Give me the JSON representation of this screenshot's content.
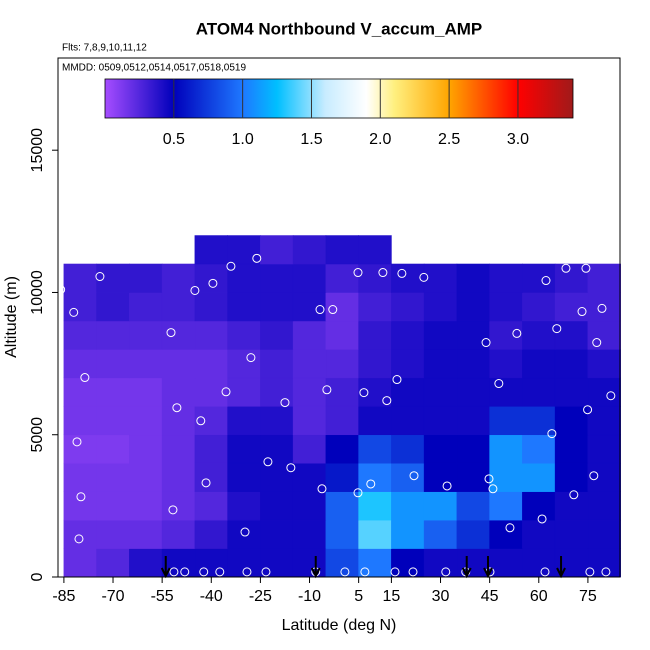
{
  "chart_data": {
    "type": "heatmap",
    "title": "ATOM4 Northbound V_accum_AMP",
    "subtitle": "Flts: 7,8,9,10,11,12",
    "annotation": "MMDD: 0509,0512,0514,0517,0518,0519",
    "x_label": "Latitude (deg N)",
    "y_label": "Altitude (m)",
    "xlim": [
      -86.8,
      84.8
    ],
    "ylim": [
      0,
      18240
    ],
    "xticks": [
      -85,
      -70,
      -55,
      -40,
      -25,
      -10,
      5,
      15,
      30,
      45,
      60,
      75
    ],
    "yticks": [
      0,
      5000,
      10000,
      15000
    ],
    "x_edges": [
      -85,
      -75,
      -65,
      -55,
      -45,
      -35,
      -25,
      -15,
      -5,
      5,
      15,
      25,
      35,
      45,
      55,
      65,
      75,
      85
    ],
    "y_edges": [
      0,
      1000,
      2000,
      3000,
      4000,
      5000,
      6000,
      7000,
      8000,
      9000,
      10000,
      11000,
      12000
    ],
    "z": [
      [
        0.2,
        0.25,
        0.4,
        0.45,
        0.45,
        0.45,
        0.45,
        0.45,
        0.8,
        1.0,
        0.5,
        0.45,
        0.45,
        0.45,
        0.45,
        0.45,
        0.45
      ],
      [
        0.2,
        0.2,
        0.2,
        0.25,
        0.35,
        0.45,
        0.45,
        0.45,
        0.9,
        1.4,
        1.1,
        0.9,
        0.7,
        0.5,
        0.45,
        0.45,
        0.45
      ],
      [
        0.15,
        0.15,
        0.15,
        0.2,
        0.25,
        0.4,
        0.45,
        0.45,
        0.9,
        1.3,
        1.1,
        1.1,
        0.8,
        1.0,
        0.5,
        0.45,
        0.45
      ],
      [
        0.15,
        0.15,
        0.15,
        0.2,
        0.3,
        0.45,
        0.45,
        0.45,
        0.6,
        1.0,
        0.9,
        0.5,
        0.5,
        1.1,
        1.1,
        0.5,
        0.45
      ],
      [
        0.12,
        0.12,
        0.15,
        0.2,
        0.3,
        0.45,
        0.45,
        0.3,
        0.5,
        0.8,
        0.7,
        0.5,
        0.5,
        1.1,
        1.0,
        0.5,
        0.45
      ],
      [
        0.15,
        0.15,
        0.15,
        0.2,
        0.25,
        0.4,
        0.4,
        0.25,
        0.3,
        0.45,
        0.45,
        0.45,
        0.45,
        0.7,
        0.7,
        0.5,
        0.45
      ],
      [
        0.15,
        0.15,
        0.15,
        0.2,
        0.2,
        0.25,
        0.3,
        0.25,
        0.3,
        0.4,
        0.45,
        0.45,
        0.45,
        0.45,
        0.45,
        0.45,
        0.45
      ],
      [
        0.2,
        0.2,
        0.2,
        0.2,
        0.2,
        0.25,
        0.3,
        0.25,
        0.25,
        0.35,
        0.4,
        0.45,
        0.45,
        0.4,
        0.45,
        0.45,
        0.4
      ],
      [
        0.25,
        0.25,
        0.25,
        0.25,
        0.25,
        0.3,
        0.35,
        0.25,
        0.2,
        0.35,
        0.4,
        0.45,
        0.45,
        0.35,
        0.4,
        0.4,
        0.3
      ],
      [
        0.3,
        0.35,
        0.3,
        0.3,
        0.35,
        0.4,
        0.4,
        0.4,
        0.2,
        0.3,
        0.35,
        0.4,
        0.45,
        0.4,
        0.35,
        0.3,
        0.3
      ],
      [
        0.3,
        0.35,
        0.35,
        0.3,
        0.35,
        0.4,
        0.4,
        0.4,
        0.3,
        0.35,
        0.4,
        0.4,
        0.45,
        0.4,
        0.4,
        0.35,
        0.3
      ],
      [
        null,
        null,
        null,
        null,
        0.4,
        0.4,
        0.3,
        0.35,
        0.4,
        0.4,
        null,
        null,
        null,
        null,
        null,
        null,
        null
      ]
    ],
    "colorbar": {
      "lim": [
        0,
        3.4
      ],
      "ticks": [
        0.5,
        {
          "value": 1,
          "label": "1.0"
        },
        1.5,
        {
          "value": 2,
          "label": "2.0"
        },
        2.5,
        {
          "value": 3,
          "label": "3.0"
        }
      ],
      "colormap": [
        {
          "value": 0,
          "color": "#a64dff"
        },
        {
          "value": 0.5,
          "color": "#0000bb"
        },
        {
          "value": 1.0,
          "color": "#1e78ff"
        },
        {
          "value": 1.25,
          "color": "#00bfff"
        },
        {
          "value": 1.6,
          "color": "#c8ecff"
        },
        {
          "value": 1.9,
          "color": "#ffffff"
        },
        {
          "value": 2.1,
          "color": "#fff080"
        },
        {
          "value": 2.5,
          "color": "#ffa500"
        },
        {
          "value": 3.0,
          "color": "#ff0000"
        },
        {
          "value": 3.4,
          "color": "#a01a1a"
        }
      ]
    },
    "points": {
      "color": "#ffffff",
      "x": [
        -86,
        -82,
        -74,
        -78.6,
        -81,
        -79.8,
        -80.4,
        -52.3,
        -50.5,
        -51.7,
        -45,
        -39.5,
        -34,
        -26.1,
        -27.9,
        -35.5,
        -43.2,
        -41.6,
        -22.7,
        -15.7,
        -29.7,
        -17.5,
        -6.8,
        -2.9,
        4.8,
        12.4,
        18.2,
        24.9,
        -4.7,
        6.6,
        13.6,
        16.7,
        -6.2,
        4.8,
        8.7,
        21.9,
        32,
        44.8,
        46,
        51.2,
        61,
        43.9,
        47.8,
        53.3,
        54.5,
        62.2,
        65.5,
        68.3,
        74.4,
        73.2,
        77.7,
        79.3,
        82,
        74.9,
        64,
        76.8,
        70.7,
        -51.4,
        -48.1,
        -42.3,
        -37.4,
        -29.1,
        -23.3,
        -8.1,
        0.8,
        6.9,
        16.1,
        21.6,
        31.6,
        37.7,
        45.1,
        61.9,
        75.6,
        80.5
      ],
      "y": [
        10100,
        9300,
        10560,
        7010,
        4750,
        2820,
        1340,
        8590,
        5950,
        2360,
        10070,
        10320,
        10920,
        11200,
        7710,
        6510,
        5490,
        3310,
        4050,
        3840,
        1580,
        6130,
        9400,
        9400,
        10700,
        10700,
        10670,
        10530,
        6580,
        6480,
        6200,
        6940,
        3100,
        2960,
        3270,
        3560,
        3200,
        3450,
        3100,
        1730,
        2040,
        8240,
        6800,
        8560,
        11230,
        10420,
        8730,
        10850,
        10850,
        9330,
        8240,
        9440,
        6370,
        5880,
        5040,
        3560,
        2890,
        180,
        180,
        180,
        180,
        180,
        180,
        180,
        180,
        180,
        180,
        180,
        180,
        180,
        180,
        180,
        180,
        180
      ]
    },
    "arrows": [
      -53.9,
      -8.1,
      38,
      44.5,
      66.8
    ]
  }
}
